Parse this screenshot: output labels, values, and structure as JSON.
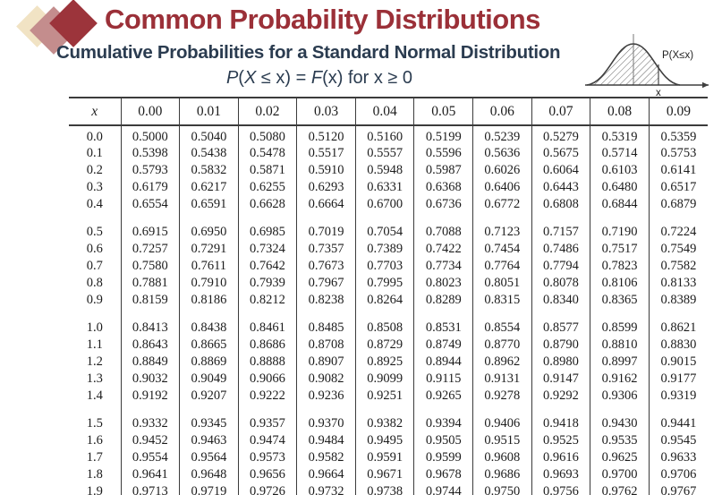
{
  "slide": {
    "title": "Common Probability Distributions",
    "subtitle": "Cumulative Probabilities for a Standard Normal Distribution",
    "formula": {
      "p": "P",
      "open": "(",
      "x_var": "X",
      "mid": " ≤ x) = ",
      "f": "F",
      "tail": "(x) for x ≥ 0"
    },
    "colors": {
      "title_red": "#9b3038",
      "navy": "#2b3c50",
      "diamond_cream": "#f1e3c4",
      "diamond_rose": "#c48d8d",
      "diamond_red": "#9c343b",
      "table_line": "#3b3b3b"
    }
  },
  "figure": {
    "area_label": "P(X≤x)",
    "axis_label": "x"
  },
  "table": {
    "columns": [
      "x",
      "0.00",
      "0.01",
      "0.02",
      "0.03",
      "0.04",
      "0.05",
      "0.06",
      "0.07",
      "0.08",
      "0.09"
    ],
    "groups": [
      [
        [
          "0.0",
          "0.5000",
          "0.5040",
          "0.5080",
          "0.5120",
          "0.5160",
          "0.5199",
          "0.5239",
          "0.5279",
          "0.5319",
          "0.5359"
        ],
        [
          "0.1",
          "0.5398",
          "0.5438",
          "0.5478",
          "0.5517",
          "0.5557",
          "0.5596",
          "0.5636",
          "0.5675",
          "0.5714",
          "0.5753"
        ],
        [
          "0.2",
          "0.5793",
          "0.5832",
          "0.5871",
          "0.5910",
          "0.5948",
          "0.5987",
          "0.6026",
          "0.6064",
          "0.6103",
          "0.6141"
        ],
        [
          "0.3",
          "0.6179",
          "0.6217",
          "0.6255",
          "0.6293",
          "0.6331",
          "0.6368",
          "0.6406",
          "0.6443",
          "0.6480",
          "0.6517"
        ],
        [
          "0.4",
          "0.6554",
          "0.6591",
          "0.6628",
          "0.6664",
          "0.6700",
          "0.6736",
          "0.6772",
          "0.6808",
          "0.6844",
          "0.6879"
        ]
      ],
      [
        [
          "0.5",
          "0.6915",
          "0.6950",
          "0.6985",
          "0.7019",
          "0.7054",
          "0.7088",
          "0.7123",
          "0.7157",
          "0.7190",
          "0.7224"
        ],
        [
          "0.6",
          "0.7257",
          "0.7291",
          "0.7324",
          "0.7357",
          "0.7389",
          "0.7422",
          "0.7454",
          "0.7486",
          "0.7517",
          "0.7549"
        ],
        [
          "0.7",
          "0.7580",
          "0.7611",
          "0.7642",
          "0.7673",
          "0.7703",
          "0.7734",
          "0.7764",
          "0.7794",
          "0.7823",
          "0.7582"
        ],
        [
          "0.8",
          "0.7881",
          "0.7910",
          "0.7939",
          "0.7967",
          "0.7995",
          "0.8023",
          "0.8051",
          "0.8078",
          "0.8106",
          "0.8133"
        ],
        [
          "0.9",
          "0.8159",
          "0.8186",
          "0.8212",
          "0.8238",
          "0.8264",
          "0.8289",
          "0.8315",
          "0.8340",
          "0.8365",
          "0.8389"
        ]
      ],
      [
        [
          "1.0",
          "0.8413",
          "0.8438",
          "0.8461",
          "0.8485",
          "0.8508",
          "0.8531",
          "0.8554",
          "0.8577",
          "0.8599",
          "0.8621"
        ],
        [
          "1.1",
          "0.8643",
          "0.8665",
          "0.8686",
          "0.8708",
          "0.8729",
          "0.8749",
          "0.8770",
          "0.8790",
          "0.8810",
          "0.8830"
        ],
        [
          "1.2",
          "0.8849",
          "0.8869",
          "0.8888",
          "0.8907",
          "0.8925",
          "0.8944",
          "0.8962",
          "0.8980",
          "0.8997",
          "0.9015"
        ],
        [
          "1.3",
          "0.9032",
          "0.9049",
          "0.9066",
          "0.9082",
          "0.9099",
          "0.9115",
          "0.9131",
          "0.9147",
          "0.9162",
          "0.9177"
        ],
        [
          "1.4",
          "0.9192",
          "0.9207",
          "0.9222",
          "0.9236",
          "0.9251",
          "0.9265",
          "0.9278",
          "0.9292",
          "0.9306",
          "0.9319"
        ]
      ],
      [
        [
          "1.5",
          "0.9332",
          "0.9345",
          "0.9357",
          "0.9370",
          "0.9382",
          "0.9394",
          "0.9406",
          "0.9418",
          "0.9430",
          "0.9441"
        ],
        [
          "1.6",
          "0.9452",
          "0.9463",
          "0.9474",
          "0.9484",
          "0.9495",
          "0.9505",
          "0.9515",
          "0.9525",
          "0.9535",
          "0.9545"
        ],
        [
          "1.7",
          "0.9554",
          "0.9564",
          "0.9573",
          "0.9582",
          "0.9591",
          "0.9599",
          "0.9608",
          "0.9616",
          "0.9625",
          "0.9633"
        ],
        [
          "1.8",
          "0.9641",
          "0.9648",
          "0.9656",
          "0.9664",
          "0.9671",
          "0.9678",
          "0.9686",
          "0.9693",
          "0.9700",
          "0.9706"
        ],
        [
          "1.9",
          "0.9713",
          "0.9719",
          "0.9726",
          "0.9732",
          "0.9738",
          "0.9744",
          "0.9750",
          "0.9756",
          "0.9762",
          "0.9767"
        ]
      ]
    ]
  }
}
